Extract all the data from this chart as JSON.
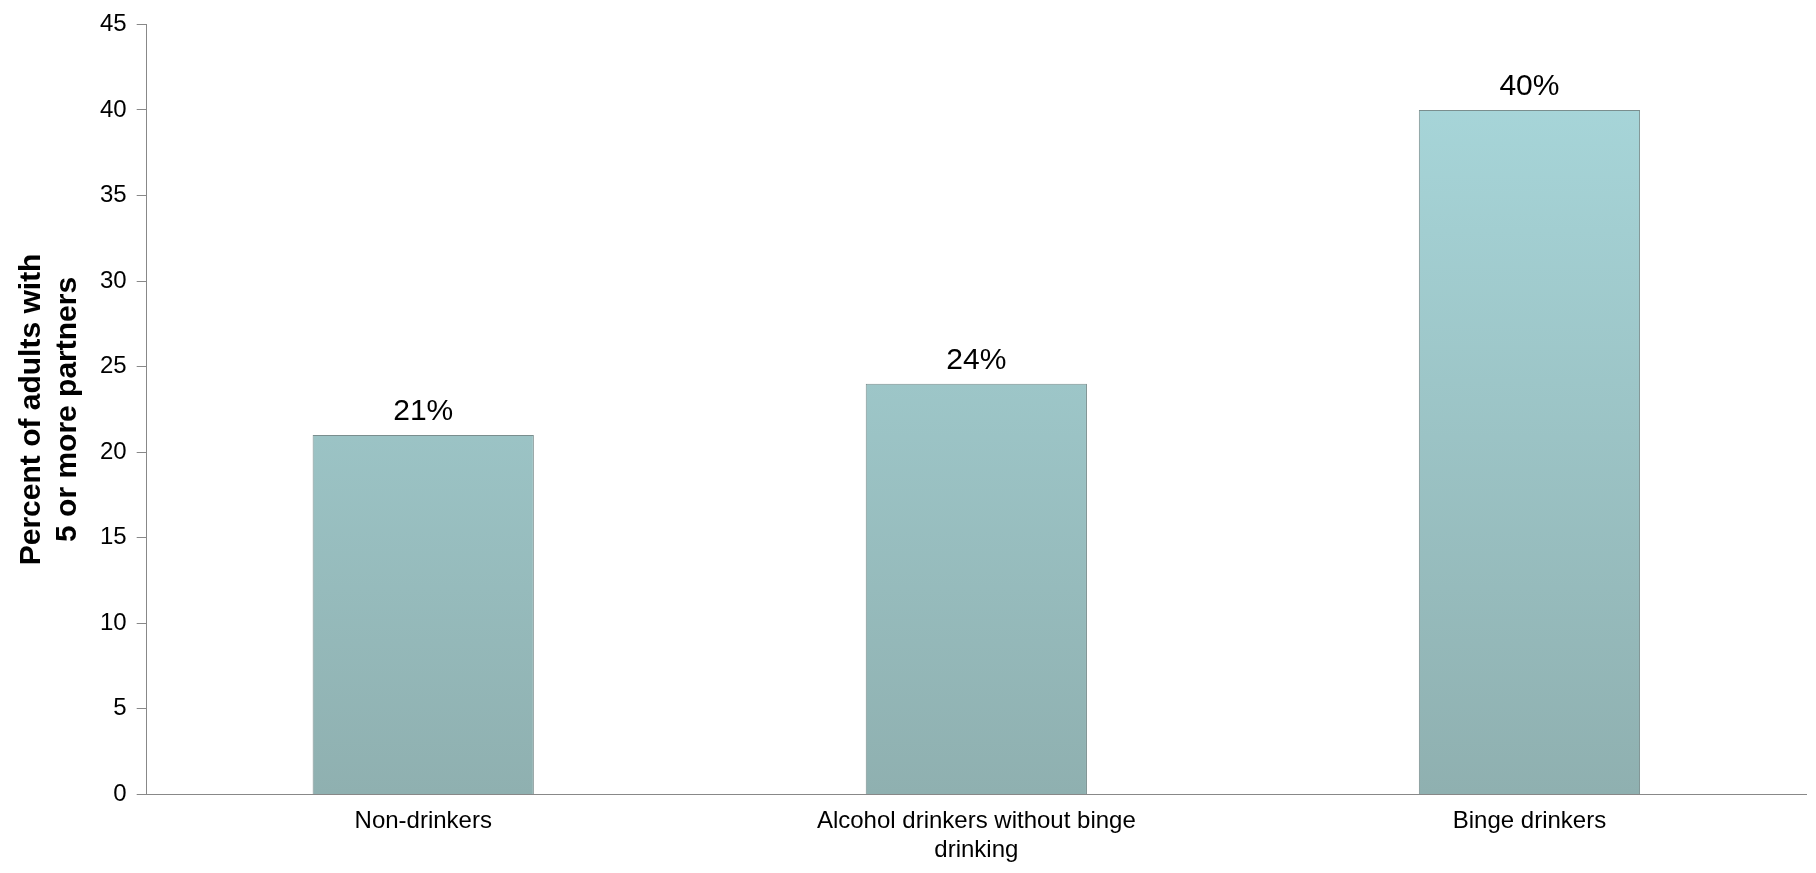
{
  "chart_data": {
    "type": "bar",
    "ylabel": "Percent of adults with\n5 or more partners",
    "categories": [
      "Non-drinkers",
      "Alcohol drinkers without binge drinking",
      "Binge drinkers"
    ],
    "values": [
      21,
      24,
      40
    ],
    "value_labels": [
      "21%",
      "24%",
      "40%"
    ],
    "color": "#a9d9dd",
    "ylim": [
      0,
      45
    ],
    "yticks": [
      0,
      5,
      10,
      15,
      20,
      25,
      30,
      35,
      40,
      45
    ],
    "grid": false,
    "legend": false
  }
}
